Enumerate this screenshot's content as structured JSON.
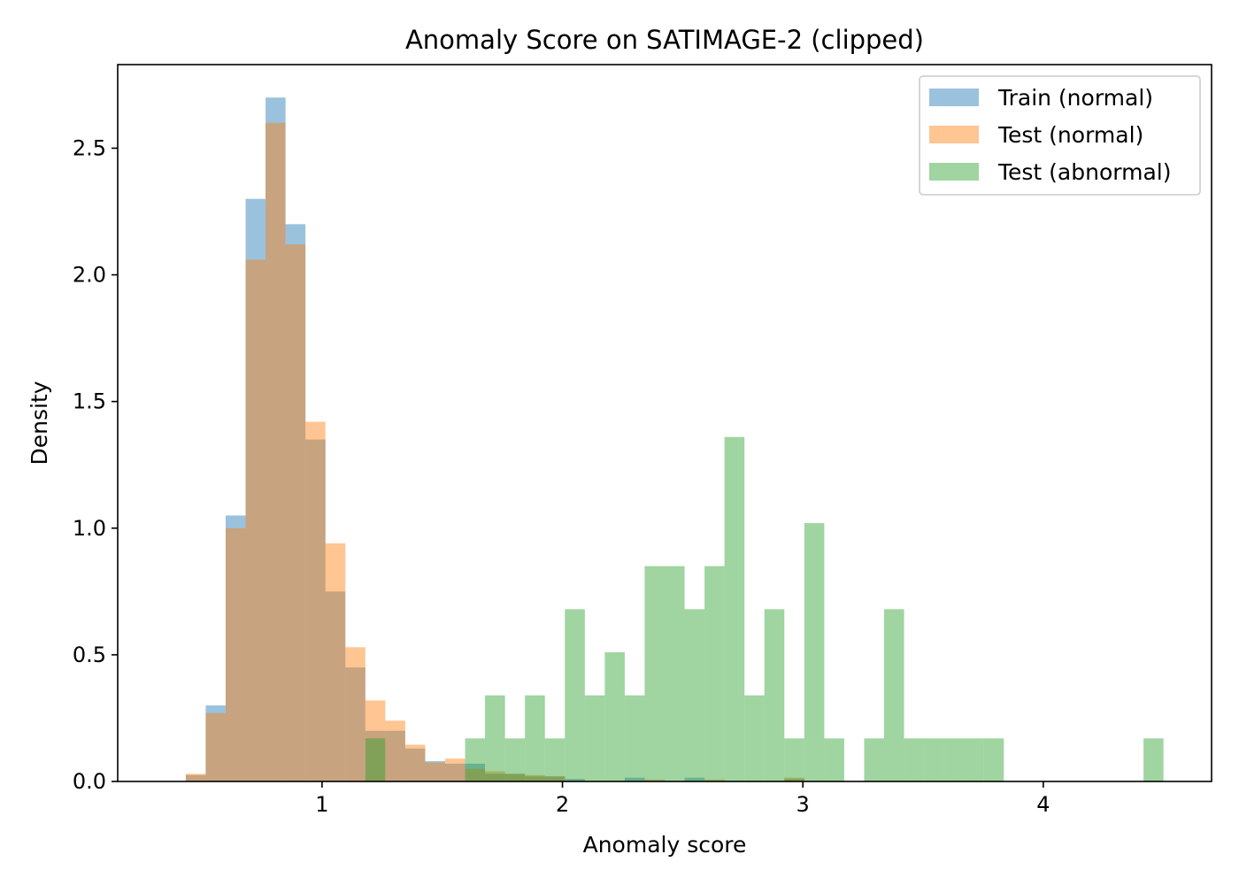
{
  "chart_data": {
    "type": "histogram",
    "title": "Anomaly Score on SATIMAGE-2 (clipped)",
    "xlabel": "Anomaly score",
    "ylabel": "Density",
    "xlim": [
      0.15,
      4.7
    ],
    "ylim": [
      0,
      2.83
    ],
    "xticks": [
      1,
      2,
      3,
      4
    ],
    "xtick_labels": [
      "1",
      "2",
      "3",
      "4"
    ],
    "yticks": [
      0,
      0.5,
      1,
      1.5,
      2,
      2.5
    ],
    "ytick_labels": [
      "0.0",
      "0.5",
      "1.0",
      "1.5",
      "2.0",
      "2.5"
    ],
    "grid": false,
    "legend_position": "top-right",
    "series": [
      {
        "name": "Train (normal)",
        "color": "#1f77b4",
        "alpha": 0.45,
        "bin_width": 0.083,
        "bins": [
          [
            0.35,
            0.0
          ],
          [
            0.433,
            0.025
          ],
          [
            0.516,
            0.3
          ],
          [
            0.599,
            1.05
          ],
          [
            0.682,
            2.3
          ],
          [
            0.765,
            2.7
          ],
          [
            0.848,
            2.2
          ],
          [
            0.931,
            1.35
          ],
          [
            1.014,
            0.75
          ],
          [
            1.097,
            0.45
          ],
          [
            1.18,
            0.2
          ],
          [
            1.263,
            0.2
          ],
          [
            1.346,
            0.13
          ],
          [
            1.429,
            0.08
          ],
          [
            1.512,
            0.07
          ],
          [
            1.595,
            0.07
          ],
          [
            1.678,
            0.03
          ],
          [
            1.761,
            0.03
          ],
          [
            1.844,
            0.02
          ],
          [
            1.927,
            0.02
          ],
          [
            2.01,
            0.01
          ],
          [
            2.093,
            0.0
          ],
          [
            2.176,
            0.0
          ],
          [
            2.259,
            0.015
          ],
          [
            2.342,
            0.0
          ],
          [
            2.425,
            0.0
          ],
          [
            2.508,
            0.015
          ],
          [
            2.591,
            0.0
          ],
          [
            2.674,
            0.0
          ],
          [
            2.757,
            0.0
          ],
          [
            2.84,
            0.0
          ],
          [
            2.923,
            0.01
          ]
        ]
      },
      {
        "name": "Test (normal)",
        "color": "#ff7f0e",
        "alpha": 0.45,
        "bin_width": 0.083,
        "bins": [
          [
            0.35,
            0.0
          ],
          [
            0.433,
            0.03
          ],
          [
            0.516,
            0.27
          ],
          [
            0.599,
            1.0
          ],
          [
            0.682,
            2.06
          ],
          [
            0.765,
            2.6
          ],
          [
            0.848,
            2.12
          ],
          [
            0.931,
            1.42
          ],
          [
            1.014,
            0.94
          ],
          [
            1.097,
            0.53
          ],
          [
            1.18,
            0.32
          ],
          [
            1.263,
            0.24
          ],
          [
            1.346,
            0.145
          ],
          [
            1.429,
            0.075
          ],
          [
            1.512,
            0.09
          ],
          [
            1.595,
            0.05
          ],
          [
            1.678,
            0.04
          ],
          [
            1.761,
            0.03
          ],
          [
            1.844,
            0.025
          ],
          [
            1.927,
            0.02
          ],
          [
            2.01,
            0.0
          ],
          [
            2.093,
            0.0
          ],
          [
            2.176,
            0.0
          ],
          [
            2.259,
            0.0
          ],
          [
            2.342,
            0.008
          ],
          [
            2.425,
            0.0
          ],
          [
            2.508,
            0.0
          ],
          [
            2.591,
            0.008
          ],
          [
            2.674,
            0.0
          ],
          [
            2.757,
            0.0
          ],
          [
            2.84,
            0.0
          ],
          [
            2.923,
            0.015
          ]
        ]
      },
      {
        "name": "Test (abnormal)",
        "color": "#2ca02c",
        "alpha": 0.45,
        "bin_width": 0.083,
        "bins": [
          [
            1.18,
            0.17
          ],
          [
            1.263,
            0.0
          ],
          [
            1.346,
            0.0
          ],
          [
            1.429,
            0.0
          ],
          [
            1.512,
            0.0
          ],
          [
            1.595,
            0.17
          ],
          [
            1.678,
            0.34
          ],
          [
            1.761,
            0.17
          ],
          [
            1.844,
            0.34
          ],
          [
            1.927,
            0.17
          ],
          [
            2.01,
            0.68
          ],
          [
            2.093,
            0.34
          ],
          [
            2.176,
            0.51
          ],
          [
            2.259,
            0.34
          ],
          [
            2.342,
            0.85
          ],
          [
            2.425,
            0.85
          ],
          [
            2.508,
            0.68
          ],
          [
            2.591,
            0.85
          ],
          [
            2.674,
            1.36
          ],
          [
            2.757,
            0.34
          ],
          [
            2.84,
            0.68
          ],
          [
            2.923,
            0.17
          ],
          [
            3.006,
            1.02
          ],
          [
            3.089,
            0.17
          ],
          [
            3.172,
            0.0
          ],
          [
            3.255,
            0.17
          ],
          [
            3.338,
            0.68
          ],
          [
            3.421,
            0.17
          ],
          [
            3.504,
            0.17
          ],
          [
            3.587,
            0.17
          ],
          [
            3.67,
            0.17
          ],
          [
            3.753,
            0.17
          ],
          [
            3.836,
            0.0
          ],
          [
            3.919,
            0.0
          ],
          [
            4.002,
            0.0
          ],
          [
            4.085,
            0.0
          ],
          [
            4.168,
            0.0
          ],
          [
            4.251,
            0.0
          ],
          [
            4.334,
            0.0
          ],
          [
            4.417,
            0.17
          ]
        ]
      }
    ]
  }
}
